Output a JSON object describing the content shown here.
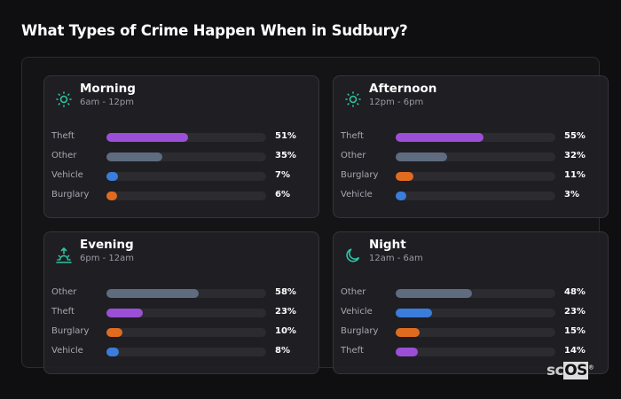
{
  "title": "What Types of Crime Happen When in Sudbury?",
  "colors": {
    "Theft": "#9b4fd6",
    "Other": "#5f6b7e",
    "Vehicle": "#3a7ddb",
    "Burglary": "#e06b1f",
    "accent": "#2ec4a0"
  },
  "periods": [
    {
      "name": "Morning",
      "range": "6am - 12pm",
      "icon": "sun-icon",
      "rows": [
        {
          "label": "Theft",
          "pct": 51,
          "text": "51%"
        },
        {
          "label": "Other",
          "pct": 35,
          "text": "35%"
        },
        {
          "label": "Vehicle",
          "pct": 7,
          "text": "7%"
        },
        {
          "label": "Burglary",
          "pct": 6,
          "text": "6%"
        }
      ]
    },
    {
      "name": "Afternoon",
      "range": "12pm - 6pm",
      "icon": "sun-icon",
      "rows": [
        {
          "label": "Theft",
          "pct": 55,
          "text": "55%"
        },
        {
          "label": "Other",
          "pct": 32,
          "text": "32%"
        },
        {
          "label": "Burglary",
          "pct": 11,
          "text": "11%"
        },
        {
          "label": "Vehicle",
          "pct": 3,
          "text": "3%"
        }
      ]
    },
    {
      "name": "Evening",
      "range": "6pm - 12am",
      "icon": "sunset-icon",
      "rows": [
        {
          "label": "Other",
          "pct": 58,
          "text": "58%"
        },
        {
          "label": "Theft",
          "pct": 23,
          "text": "23%"
        },
        {
          "label": "Burglary",
          "pct": 10,
          "text": "10%"
        },
        {
          "label": "Vehicle",
          "pct": 8,
          "text": "8%"
        }
      ]
    },
    {
      "name": "Night",
      "range": "12am - 6am",
      "icon": "moon-icon",
      "rows": [
        {
          "label": "Other",
          "pct": 48,
          "text": "48%"
        },
        {
          "label": "Vehicle",
          "pct": 23,
          "text": "23%"
        },
        {
          "label": "Burglary",
          "pct": 15,
          "text": "15%"
        },
        {
          "label": "Theft",
          "pct": 14,
          "text": "14%"
        }
      ]
    }
  ],
  "logo": {
    "text1": "sc",
    "text2": "OS",
    "mark": "®"
  }
}
